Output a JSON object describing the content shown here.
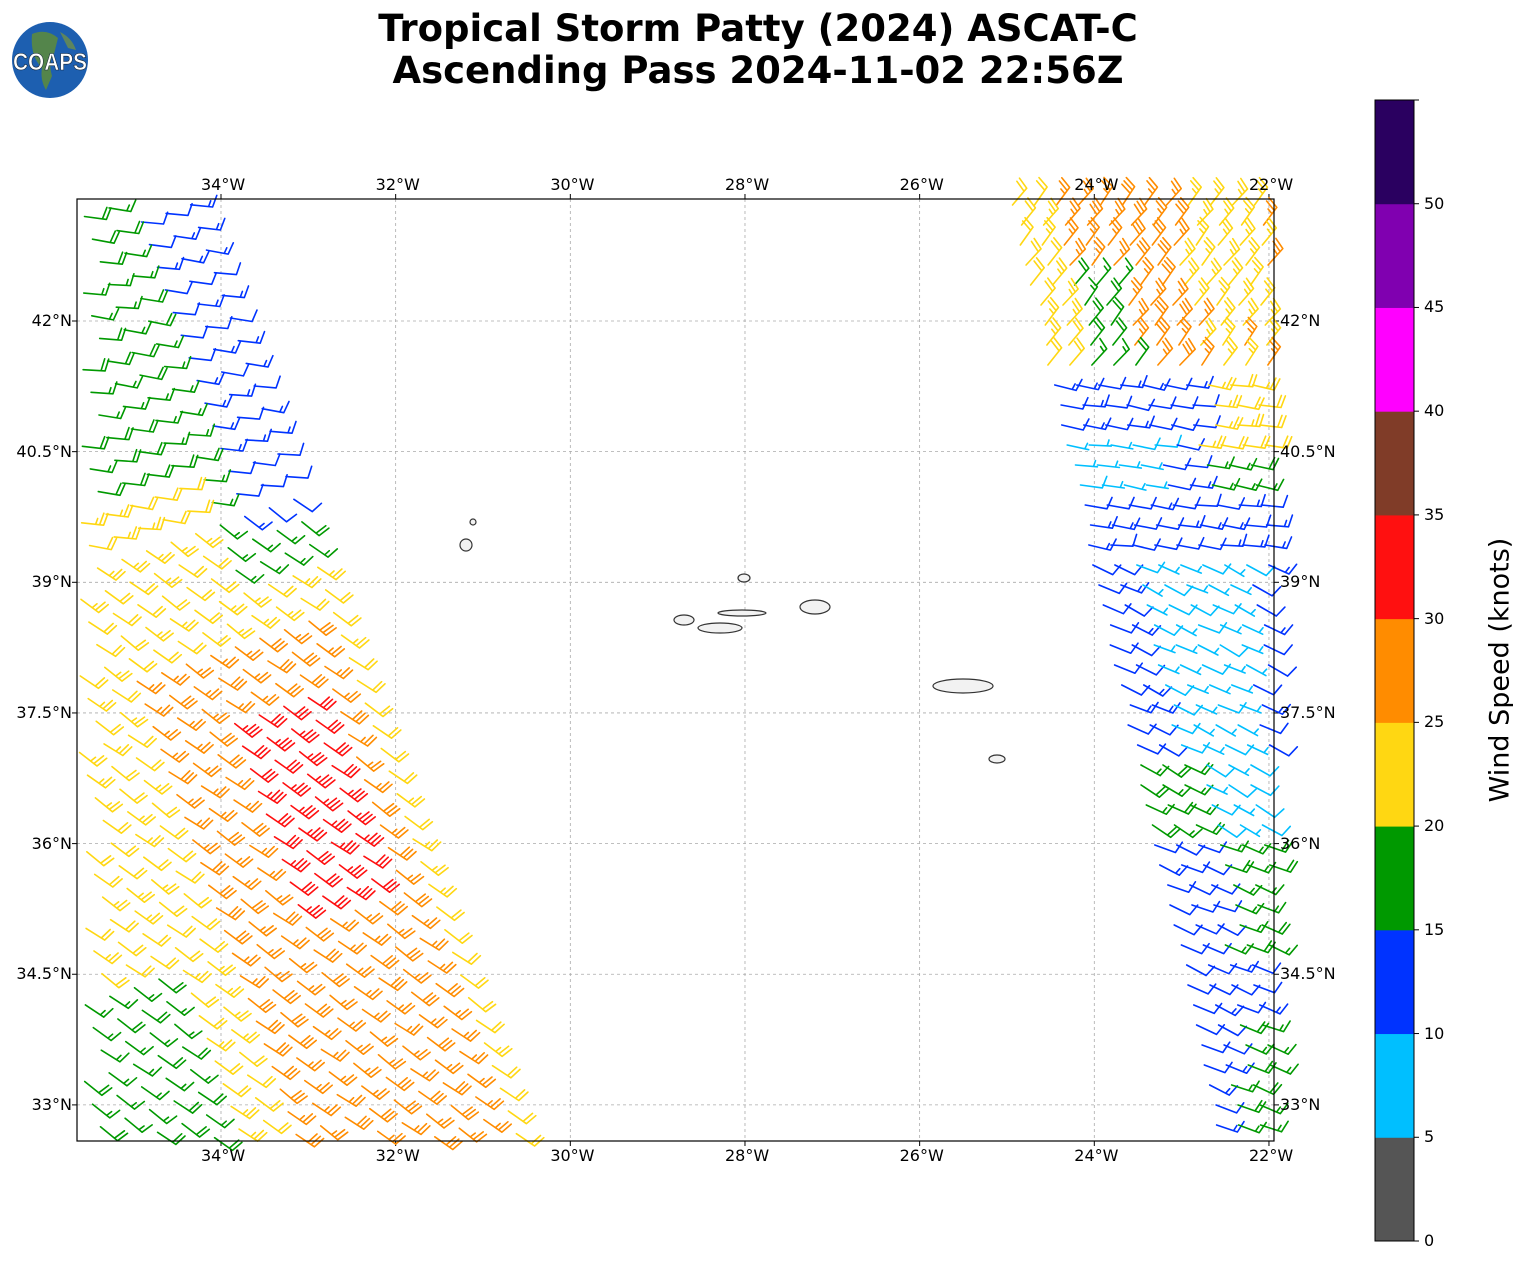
{
  "title_line1": "Tropical Storm Patty (2024) ASCAT-C",
  "title_line2": "Ascending Pass 2024-11-02 22:56Z",
  "logo_text": "COAPS",
  "lon_ticks": [
    "34°W",
    "32°W",
    "30°W",
    "28°W",
    "26°W",
    "24°W",
    "22°W"
  ],
  "lat_ticks": [
    "42°N",
    "40.5°N",
    "39°N",
    "37.5°N",
    "36°N",
    "34.5°N",
    "33°N"
  ],
  "colorbar": {
    "label": "Wind Speed (knots)",
    "tick_labels": [
      "0",
      "5",
      "10",
      "15",
      "20",
      "25",
      "30",
      "35",
      "40",
      "45",
      "50"
    ],
    "bins": [
      0,
      5,
      10,
      15,
      20,
      25,
      30,
      35,
      40,
      45,
      50,
      55
    ],
    "colors": [
      "#555555",
      "#00bfff",
      "#0033ff",
      "#009900",
      "#ffd712",
      "#ff8c00",
      "#ff1010",
      "#803c28",
      "#ff00ff",
      "#8000b0",
      "#2a0060"
    ]
  }
}
